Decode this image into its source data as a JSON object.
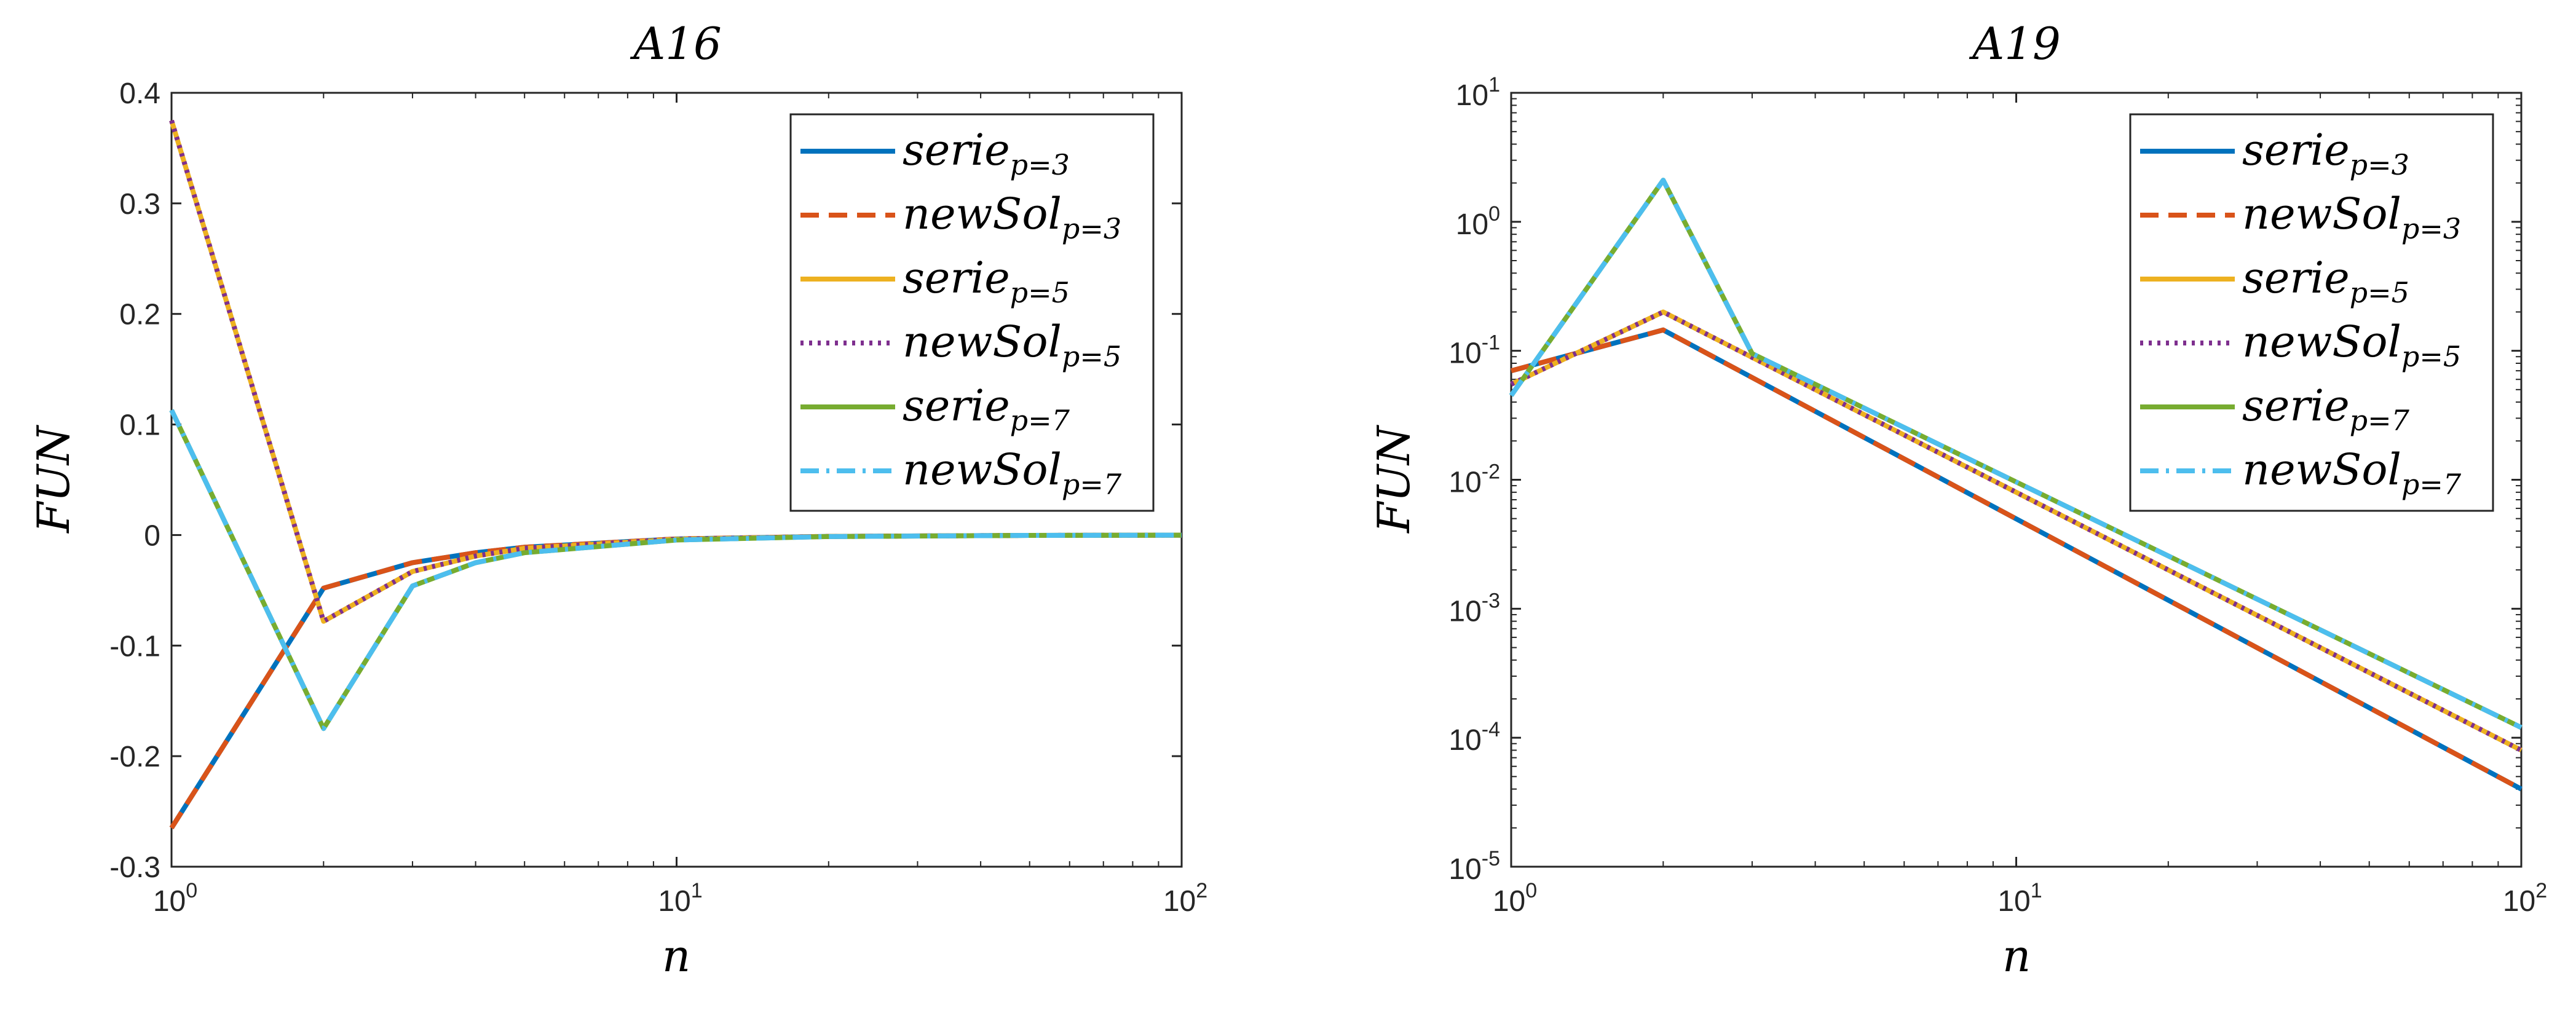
{
  "chart_data": [
    {
      "type": "line",
      "title": "A16",
      "xlabel": "n",
      "ylabel": "FUN",
      "xscale": "log",
      "yscale": "linear",
      "xlim": [
        1,
        100
      ],
      "ylim": [
        -0.3,
        0.4
      ],
      "x_ticks": [
        1,
        10,
        100
      ],
      "x_tick_labels": [
        {
          "base": "10",
          "exp": "0"
        },
        {
          "base": "10",
          "exp": "1"
        },
        {
          "base": "10",
          "exp": "2"
        }
      ],
      "y_ticks": [
        0.4,
        0.3,
        0.2,
        0.1,
        0,
        -0.1,
        -0.2,
        -0.3
      ],
      "y_tick_labels": [
        "0.4",
        "0.3",
        "0.2",
        "0.1",
        "0",
        "-0.1",
        "-0.2",
        "-0.3"
      ],
      "legend_position": "top-right",
      "series": [
        {
          "name": "serie",
          "subscript": "p=3",
          "color": "#0072BD",
          "dash": "solid",
          "x": [
            1,
            2,
            3,
            4,
            5,
            10,
            20,
            50,
            100
          ],
          "values": [
            -0.265,
            -0.048,
            -0.025,
            -0.016,
            -0.011,
            -0.0035,
            -0.0012,
            -0.0003,
            -0.0001
          ]
        },
        {
          "name": "newSol",
          "subscript": "p=3",
          "color": "#D95319",
          "dash": "dashed",
          "x": [
            1,
            2,
            3,
            4,
            5,
            10,
            20,
            50,
            100
          ],
          "values": [
            -0.265,
            -0.048,
            -0.025,
            -0.016,
            -0.011,
            -0.0035,
            -0.0012,
            -0.0003,
            -0.0001
          ]
        },
        {
          "name": "serie",
          "subscript": "p=5",
          "color": "#EDB120",
          "dash": "solid",
          "x": [
            1,
            2,
            3,
            4,
            5,
            10,
            20,
            50,
            100
          ],
          "values": [
            0.375,
            -0.078,
            -0.033,
            -0.019,
            -0.012,
            -0.0038,
            -0.0013,
            -0.0003,
            -0.0001
          ]
        },
        {
          "name": "newSol",
          "subscript": "p=5",
          "color": "#7E2F8E",
          "dash": "dotted",
          "x": [
            1,
            2,
            3,
            4,
            5,
            10,
            20,
            50,
            100
          ],
          "values": [
            0.375,
            -0.078,
            -0.033,
            -0.019,
            -0.012,
            -0.0038,
            -0.0013,
            -0.0003,
            -0.0001
          ]
        },
        {
          "name": "serie",
          "subscript": "p=7",
          "color": "#77AC30",
          "dash": "solid",
          "x": [
            1,
            2,
            3,
            4,
            5,
            10,
            20,
            50,
            100
          ],
          "values": [
            0.113,
            -0.175,
            -0.046,
            -0.025,
            -0.016,
            -0.0045,
            -0.0014,
            -0.0003,
            -0.0001
          ]
        },
        {
          "name": "newSol",
          "subscript": "p=7",
          "color": "#4DBEEE",
          "dash": "dashdot",
          "x": [
            1,
            2,
            3,
            4,
            5,
            10,
            20,
            50,
            100
          ],
          "values": [
            0.113,
            -0.175,
            -0.046,
            -0.025,
            -0.016,
            -0.0045,
            -0.0014,
            -0.0003,
            -0.0001
          ]
        }
      ]
    },
    {
      "type": "line",
      "title": "A19",
      "xlabel": "n",
      "ylabel": "FUN",
      "xscale": "log",
      "yscale": "log",
      "xlim": [
        1,
        100
      ],
      "ylim": [
        1e-05,
        10
      ],
      "x_ticks": [
        1,
        10,
        100
      ],
      "x_tick_labels": [
        {
          "base": "10",
          "exp": "0"
        },
        {
          "base": "10",
          "exp": "1"
        },
        {
          "base": "10",
          "exp": "2"
        }
      ],
      "y_ticks": [
        10,
        1,
        0.1,
        0.01,
        0.001,
        0.0001,
        1e-05
      ],
      "y_tick_labels": [
        {
          "base": "10",
          "exp": "1"
        },
        {
          "base": "10",
          "exp": "0"
        },
        {
          "base": "10",
          "exp": "-1"
        },
        {
          "base": "10",
          "exp": "-2"
        },
        {
          "base": "10",
          "exp": "-3"
        },
        {
          "base": "10",
          "exp": "-4"
        },
        {
          "base": "10",
          "exp": "-5"
        }
      ],
      "legend_position": "top-right",
      "series": [
        {
          "name": "serie",
          "subscript": "p=3",
          "color": "#0072BD",
          "dash": "solid",
          "x": [
            1,
            2,
            100
          ],
          "values": [
            0.07,
            0.145,
            4e-05
          ]
        },
        {
          "name": "newSol",
          "subscript": "p=3",
          "color": "#D95319",
          "dash": "dashed",
          "x": [
            1,
            2,
            100
          ],
          "values": [
            0.07,
            0.145,
            4e-05
          ]
        },
        {
          "name": "serie",
          "subscript": "p=5",
          "color": "#EDB120",
          "dash": "solid",
          "x": [
            1,
            2,
            100
          ],
          "values": [
            0.055,
            0.2,
            8e-05
          ]
        },
        {
          "name": "newSol",
          "subscript": "p=5",
          "color": "#7E2F8E",
          "dash": "dotted",
          "x": [
            1,
            2,
            100
          ],
          "values": [
            0.055,
            0.2,
            8e-05
          ]
        },
        {
          "name": "serie",
          "subscript": "p=7",
          "color": "#77AC30",
          "dash": "solid",
          "x": [
            1,
            2,
            3,
            100
          ],
          "values": [
            0.045,
            2.1,
            0.095,
            0.00012
          ]
        },
        {
          "name": "newSol",
          "subscript": "p=7",
          "color": "#4DBEEE",
          "dash": "dashdot",
          "x": [
            1,
            2,
            3,
            100
          ],
          "values": [
            0.045,
            2.1,
            0.095,
            0.00012
          ]
        }
      ]
    }
  ]
}
